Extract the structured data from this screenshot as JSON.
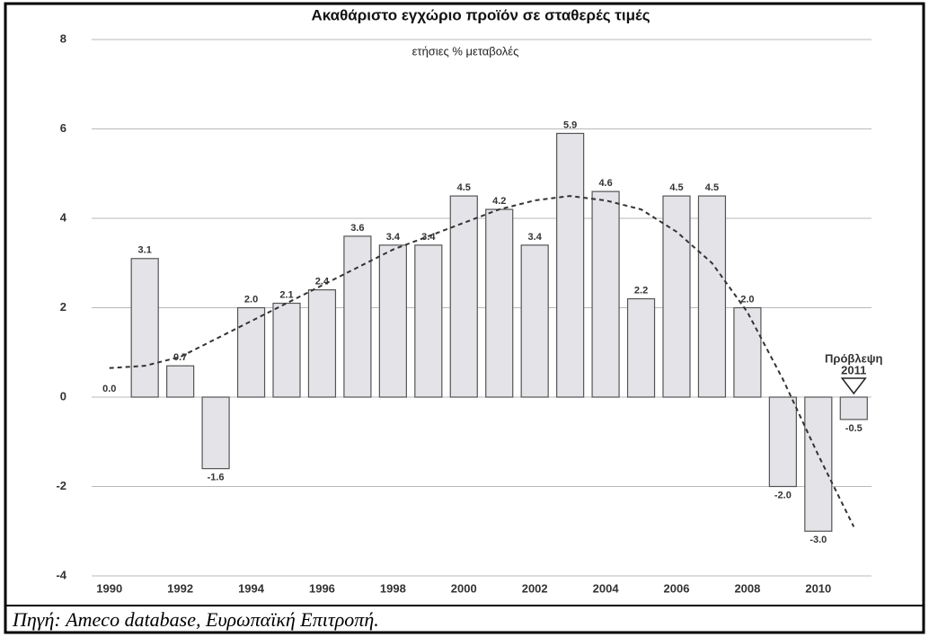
{
  "chart_data": {
    "type": "bar",
    "title": "Ακαθάριστο εγχώριο προϊόν σε σταθερές τιμές",
    "subtitle": "ετήσιες % μεταβολές",
    "categories": [
      "1990",
      null,
      "1992",
      null,
      "1994",
      null,
      "1996",
      null,
      "1998",
      null,
      "2000",
      null,
      "2002",
      null,
      "2004",
      null,
      "2006",
      null,
      "2008",
      null,
      "2010",
      null
    ],
    "values": [
      0.0,
      3.1,
      0.7,
      -1.6,
      2.0,
      2.1,
      2.4,
      3.6,
      3.4,
      3.4,
      4.5,
      4.2,
      3.4,
      5.9,
      4.6,
      2.2,
      4.5,
      4.5,
      2.0,
      -2.0,
      -3.0,
      -0.5
    ],
    "value_labels": [
      "0.0",
      "3.1",
      "0.7",
      "-1.6",
      "2.0",
      "2.1",
      "2.4",
      "3.6",
      "3.4",
      "3.4",
      "4.5",
      "4.2",
      "3.4",
      "5.9",
      "4.6",
      "2.2",
      "4.5",
      "4.5",
      "2.0",
      "-2.0",
      "-3.0",
      "-0.5"
    ],
    "trend": [
      0.65,
      0.7,
      0.9,
      1.3,
      1.7,
      2.1,
      2.5,
      2.9,
      3.3,
      3.6,
      3.9,
      4.2,
      4.4,
      4.5,
      4.4,
      4.2,
      3.7,
      3.0,
      1.9,
      0.4,
      -1.3,
      -2.9
    ],
    "color": "#e4e4e8",
    "ylim": [
      -4,
      8
    ],
    "yticks": [
      -4,
      -2,
      0,
      2,
      4,
      6,
      8
    ],
    "grid": true,
    "annotation_lines": [
      "Πρόβλεψη",
      "2011"
    ],
    "source": "Πηγή: Ameco database, Ευρωπαϊκή Επιτροπή."
  }
}
